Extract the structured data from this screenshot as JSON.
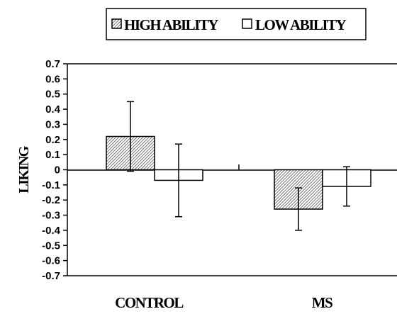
{
  "chart_data": {
    "type": "bar",
    "categories": [
      "CONTROL",
      "MS"
    ],
    "series": [
      {
        "name": "HIGH ABILITY",
        "values": [
          0.22,
          -0.26
        ],
        "error": [
          0.23,
          0.14
        ],
        "fill": "hatched"
      },
      {
        "name": "LOW ABILITY",
        "values": [
          -0.07,
          -0.11
        ],
        "error": [
          0.24,
          0.13
        ],
        "fill": "#ffffff"
      }
    ],
    "ylabel": "LIKING",
    "xlabel": "",
    "ylim": [
      -0.7,
      0.7
    ],
    "yticks": [
      "0.7",
      "0.6",
      "0.5",
      "0.4",
      "0.3",
      "0.2",
      "0.1",
      "0",
      "-0.1",
      "-0.2",
      "-0.3",
      "-0.4",
      "-0.5",
      "-0.6",
      "-0.7"
    ],
    "legend": {
      "position": "top",
      "labels": [
        "HIGH ABILITY",
        "LOW ABILITY"
      ]
    },
    "grid": false,
    "colors": {
      "bar_outline": "#000000",
      "high_fill": "hatched",
      "low_fill": "#ffffff",
      "background": "#ffffff"
    }
  }
}
